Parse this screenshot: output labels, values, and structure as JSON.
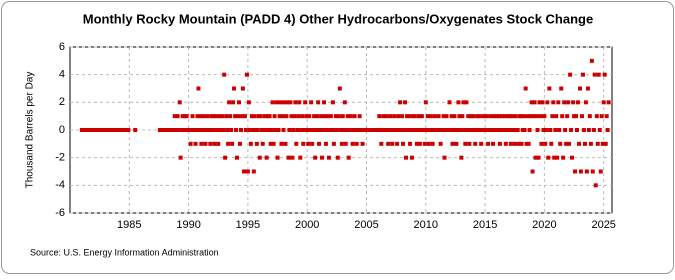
{
  "chart_data": {
    "type": "scatter",
    "title": "Monthly Rocky Mountain (PADD 4) Other Hydrocarbons/Oxygenates Stock Change",
    "y_label": "Thousand Barrels per Day",
    "source": "Source: U.S. Energy Information Administration",
    "color": "#cc0000",
    "grid": true,
    "xlim": [
      1980,
      2025.7
    ],
    "xticks": [
      1985,
      1990,
      1995,
      2000,
      2005,
      2010,
      2015,
      2020,
      2025
    ],
    "ylim": [
      -6,
      6
    ],
    "yticks": [
      -6,
      -4,
      -2,
      0,
      2,
      4,
      6
    ],
    "x": [
      1981,
      1981.08,
      1981.17,
      1981.25,
      1981.33,
      1981.42,
      1981.5,
      1981.58,
      1981.67,
      1981.75,
      1981.83,
      1981.92,
      1982,
      1982.08,
      1982.17,
      1982.25,
      1982.33,
      1982.42,
      1982.5,
      1982.58,
      1982.67,
      1982.75,
      1982.83,
      1982.92,
      1983,
      1983.08,
      1983.17,
      1983.25,
      1983.33,
      1983.42,
      1983.5,
      1983.58,
      1983.67,
      1983.75,
      1983.83,
      1983.92,
      1984,
      1984.08,
      1984.17,
      1984.25,
      1984.33,
      1984.42,
      1984.5,
      1984.58,
      1984.67,
      1984.75,
      1984.83,
      1984.92,
      1985.5,
      1987.58,
      1987.67,
      1987.75,
      1987.83,
      1987.92,
      1988,
      1988.08,
      1988.17,
      1988.25,
      1988.33,
      1988.42,
      1988.5,
      1988.58,
      1988.67,
      1988.75,
      1988.83,
      1988.92,
      1989,
      1989.08,
      1989.17,
      1989.25,
      1989.33,
      1989.42,
      1989.5,
      1989.58,
      1989.67,
      1989.75,
      1989.83,
      1989.92,
      1990,
      1990.08,
      1990.17,
      1990.25,
      1990.33,
      1990.42,
      1990.5,
      1990.58,
      1990.67,
      1990.75,
      1990.83,
      1990.92,
      1991,
      1991.08,
      1991.17,
      1991.25,
      1991.33,
      1991.42,
      1991.5,
      1991.58,
      1991.67,
      1991.75,
      1991.83,
      1991.92,
      1992,
      1992.08,
      1992.17,
      1992.25,
      1992.33,
      1992.42,
      1992.5,
      1992.58,
      1992.67,
      1992.75,
      1992.83,
      1992.92,
      1993,
      1993.08,
      1993.17,
      1993.25,
      1993.33,
      1993.42,
      1993.5,
      1993.58,
      1993.67,
      1993.75,
      1993.83,
      1993.92,
      1994,
      1994.08,
      1994.17,
      1994.25,
      1994.33,
      1994.42,
      1994.5,
      1994.58,
      1994.67,
      1994.75,
      1994.83,
      1994.92,
      1995,
      1995.08,
      1995.17,
      1995.25,
      1995.33,
      1995.42,
      1995.5,
      1995.58,
      1995.67,
      1995.75,
      1995.83,
      1995.92,
      1996,
      1996.08,
      1996.17,
      1996.25,
      1996.33,
      1996.42,
      1996.5,
      1996.58,
      1996.67,
      1996.75,
      1996.83,
      1996.92,
      1997,
      1997.08,
      1997.17,
      1997.25,
      1997.33,
      1997.42,
      1997.5,
      1997.58,
      1997.67,
      1997.75,
      1997.83,
      1997.92,
      1998,
      1998.08,
      1998.17,
      1998.25,
      1998.33,
      1998.42,
      1998.5,
      1998.58,
      1998.67,
      1998.75,
      1998.83,
      1998.92,
      1999,
      1999.08,
      1999.17,
      1999.25,
      1999.33,
      1999.42,
      1999.5,
      1999.58,
      1999.67,
      1999.75,
      1999.83,
      1999.92,
      2000,
      2000.08,
      2000.17,
      2000.25,
      2000.33,
      2000.42,
      2000.5,
      2000.58,
      2000.67,
      2000.75,
      2000.83,
      2000.92,
      2001,
      2001.08,
      2001.17,
      2001.25,
      2001.33,
      2001.42,
      2001.5,
      2001.58,
      2001.67,
      2001.75,
      2001.83,
      2001.92,
      2002,
      2002.08,
      2002.17,
      2002.25,
      2002.33,
      2002.42,
      2002.5,
      2002.58,
      2002.67,
      2002.75,
      2002.83,
      2002.92,
      2003,
      2003.08,
      2003.17,
      2003.25,
      2003.33,
      2003.42,
      2003.5,
      2003.58,
      2003.67,
      2003.75,
      2003.83,
      2003.92,
      2004,
      2004.08,
      2004.17,
      2004.25,
      2004.33,
      2004.42,
      2004.5,
      2004.58,
      2004.67,
      2004.75,
      2004.83,
      2004.92,
      2005,
      2005.08,
      2005.17,
      2005.25,
      2005.33,
      2005.42,
      2005.5,
      2005.58,
      2005.67,
      2005.75,
      2005.83,
      2005.92,
      2006,
      2006.08,
      2006.17,
      2006.25,
      2006.33,
      2006.42,
      2006.5,
      2006.58,
      2006.67,
      2006.75,
      2006.83,
      2006.92,
      2007,
      2007.08,
      2007.17,
      2007.25,
      2007.33,
      2007.42,
      2007.5,
      2007.58,
      2007.67,
      2007.75,
      2007.83,
      2007.92,
      2008,
      2008.08,
      2008.17,
      2008.25,
      2008.33,
      2008.42,
      2008.5,
      2008.58,
      2008.67,
      2008.75,
      2008.83,
      2008.92,
      2009,
      2009.08,
      2009.17,
      2009.25,
      2009.33,
      2009.42,
      2009.5,
      2009.58,
      2009.67,
      2009.75,
      2009.83,
      2009.92,
      2010,
      2010.08,
      2010.17,
      2010.25,
      2010.33,
      2010.42,
      2010.5,
      2010.58,
      2010.67,
      2010.75,
      2010.83,
      2010.92,
      2011,
      2011.08,
      2011.17,
      2011.25,
      2011.33,
      2011.42,
      2011.5,
      2011.58,
      2011.67,
      2011.75,
      2011.83,
      2011.92,
      2012,
      2012.08,
      2012.17,
      2012.25,
      2012.33,
      2012.42,
      2012.5,
      2012.58,
      2012.67,
      2012.75,
      2012.83,
      2012.92,
      2013,
      2013.08,
      2013.17,
      2013.25,
      2013.33,
      2013.42,
      2013.5,
      2013.58,
      2013.67,
      2013.75,
      2013.83,
      2013.92,
      2014,
      2014.08,
      2014.17,
      2014.25,
      2014.33,
      2014.42,
      2014.5,
      2014.58,
      2014.67,
      2014.75,
      2014.83,
      2014.92,
      2015,
      2015.08,
      2015.17,
      2015.25,
      2015.33,
      2015.42,
      2015.5,
      2015.58,
      2015.67,
      2015.75,
      2015.83,
      2015.92,
      2016,
      2016.08,
      2016.17,
      2016.25,
      2016.33,
      2016.42,
      2016.5,
      2016.58,
      2016.67,
      2016.75,
      2016.83,
      2016.92,
      2017,
      2017.08,
      2017.17,
      2017.25,
      2017.33,
      2017.42,
      2017.5,
      2017.58,
      2017.67,
      2017.75,
      2017.83,
      2017.92,
      2018,
      2018.08,
      2018.17,
      2018.25,
      2018.33,
      2018.42,
      2018.5,
      2018.58,
      2018.67,
      2018.75,
      2018.83,
      2018.92,
      2019,
      2019.08,
      2019.17,
      2019.25,
      2019.33,
      2019.42,
      2019.5,
      2019.58,
      2019.67,
      2019.75,
      2019.83,
      2019.92,
      2020,
      2020.08,
      2020.17,
      2020.25,
      2020.33,
      2020.42,
      2020.5,
      2020.58,
      2020.67,
      2020.75,
      2020.83,
      2020.92,
      2021,
      2021.08,
      2021.17,
      2021.25,
      2021.33,
      2021.42,
      2021.5,
      2021.58,
      2021.67,
      2021.75,
      2021.83,
      2021.92,
      2022,
      2022.08,
      2022.17,
      2022.25,
      2022.33,
      2022.42,
      2022.5,
      2022.58,
      2022.67,
      2022.75,
      2022.83,
      2022.92,
      2023,
      2023.08,
      2023.17,
      2023.25,
      2023.33,
      2023.42,
      2023.5,
      2023.58,
      2023.67,
      2023.75,
      2023.83,
      2023.92,
      2024,
      2024.08,
      2024.17,
      2024.25,
      2024.33,
      2024.42,
      2024.5,
      2024.58,
      2024.67,
      2024.75,
      2024.83,
      2024.92,
      2025,
      2025.08,
      2025.17,
      2025.25,
      2025.33,
      2025.42
    ],
    "values": [
      0,
      0,
      0,
      0,
      0,
      0,
      0,
      0,
      0,
      0,
      0,
      0,
      0,
      0,
      0,
      0,
      0,
      0,
      0,
      0,
      0,
      0,
      0,
      0,
      0,
      0,
      0,
      0,
      0,
      0,
      0,
      0,
      0,
      0,
      0,
      0,
      0,
      0,
      0,
      0,
      0,
      0,
      0,
      0,
      0,
      0,
      0,
      0,
      0,
      0,
      0,
      0,
      0,
      0,
      0,
      0,
      0,
      0,
      0,
      0,
      0,
      0,
      0,
      0,
      1,
      0,
      0,
      1,
      0,
      2,
      -2,
      0,
      1,
      0,
      1,
      0,
      1,
      0,
      0,
      0,
      -1,
      0,
      1,
      0,
      0,
      -1,
      0,
      1,
      3,
      0,
      1,
      -1,
      0,
      1,
      0,
      -1,
      0,
      1,
      0,
      0,
      -1,
      1,
      0,
      1,
      -1,
      0,
      1,
      0,
      -1,
      1,
      0,
      0,
      1,
      0,
      4,
      -2,
      1,
      0,
      -1,
      2,
      1,
      0,
      -1,
      2,
      3,
      1,
      0,
      -2,
      1,
      2,
      -1,
      0,
      1,
      3,
      -3,
      1,
      0,
      4,
      -3,
      2,
      0,
      -1,
      1,
      0,
      -3,
      1,
      0,
      -1,
      0,
      1,
      -2,
      1,
      0,
      -1,
      0,
      1,
      0,
      -2,
      1,
      0,
      1,
      -1,
      0,
      2,
      -1,
      1,
      0,
      2,
      -2,
      0,
      1,
      2,
      -1,
      1,
      0,
      2,
      -1,
      1,
      2,
      -2,
      0,
      2,
      1,
      -2,
      0,
      1,
      2,
      -1,
      0,
      1,
      2,
      -2,
      0,
      1,
      -1,
      0,
      2,
      1,
      0,
      -1,
      1,
      0,
      2,
      -1,
      0,
      1,
      -2,
      0,
      1,
      2,
      -1,
      0,
      1,
      -2,
      0,
      2,
      1,
      -1,
      0,
      1,
      -2,
      0,
      1,
      0,
      2,
      -1,
      0,
      1,
      0,
      -2,
      1,
      3,
      0,
      -1,
      1,
      0,
      2,
      -1,
      0,
      1,
      -2,
      0,
      1,
      0,
      -1,
      0,
      1,
      0,
      -1,
      0,
      0,
      1,
      0,
      0,
      -1,
      0,
      0,
      0,
      0,
      0,
      0,
      0,
      0,
      0,
      0,
      0,
      0,
      0,
      0,
      0,
      0,
      1,
      0,
      -1,
      0,
      1,
      0,
      0,
      1,
      0,
      -1,
      0,
      1,
      0,
      -1,
      0,
      1,
      0,
      0,
      -1,
      1,
      0,
      2,
      0,
      1,
      -1,
      0,
      2,
      -2,
      1,
      0,
      1,
      -1,
      0,
      -2,
      1,
      0,
      1,
      0,
      -1,
      0,
      1,
      -1,
      0,
      1,
      0,
      0,
      -1,
      2,
      0,
      1,
      -1,
      0,
      1,
      0,
      -1,
      0,
      1,
      0,
      0,
      0,
      1,
      0,
      -1,
      0,
      0,
      1,
      -2,
      0,
      1,
      0,
      0,
      2,
      0,
      1,
      -1,
      0,
      1,
      0,
      -1,
      0,
      2,
      1,
      0,
      -2,
      1,
      2,
      0,
      -1,
      2,
      0,
      1,
      -1,
      0,
      1,
      0,
      1,
      0,
      -1,
      0,
      1,
      0,
      1,
      0,
      -1,
      0,
      1,
      0,
      0,
      1,
      0,
      -1,
      0,
      1,
      0,
      0,
      -1,
      1,
      0,
      0,
      1,
      0,
      1,
      -1,
      0,
      1,
      0,
      0,
      1,
      -1,
      0,
      1,
      0,
      1,
      -1,
      0,
      1,
      0,
      -1,
      1,
      0,
      0,
      -1,
      1,
      1,
      -1,
      0,
      1,
      0,
      3,
      -1,
      1,
      -1,
      0,
      1,
      2,
      -3,
      1,
      2,
      -2,
      1,
      0,
      -2,
      2,
      1,
      -1,
      2,
      0,
      1,
      -1,
      0,
      2,
      -2,
      3,
      0,
      -1,
      1,
      2,
      -2,
      0,
      1,
      -2,
      2,
      0,
      -1,
      3,
      1,
      -2,
      2,
      0,
      -1,
      1,
      2,
      -1,
      4,
      0,
      -2,
      2,
      1,
      -3,
      1,
      0,
      2,
      -1,
      3,
      -3,
      1,
      4,
      0,
      -1,
      2,
      -3,
      3,
      0,
      1,
      -1,
      5,
      -3,
      0,
      4,
      -4,
      1,
      -1,
      4,
      0,
      -3,
      1,
      -1,
      2,
      4,
      -1,
      1,
      0,
      2
    ]
  }
}
